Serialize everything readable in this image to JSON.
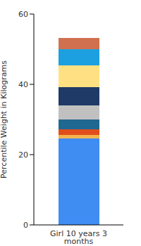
{
  "chart_data": {
    "type": "bar",
    "y_label": "Percentile Weight in Kilograms",
    "categories": [
      "Girl 10 years 3 months"
    ],
    "stacked": true,
    "ylim": [
      0,
      60
    ],
    "yticks": [
      0,
      20,
      40,
      60
    ],
    "grid": false,
    "series": [
      {
        "color": "#3f8cf2",
        "values": [
          24.6
        ]
      },
      {
        "color": "#f4b350",
        "values": [
          1.0
        ]
      },
      {
        "color": "#e04e1b",
        "values": [
          1.6
        ]
      },
      {
        "color": "#1f6891",
        "values": [
          2.8
        ]
      },
      {
        "color": "#c0c0c0",
        "values": [
          4.0
        ]
      },
      {
        "color": "#1f3a66",
        "values": [
          5.2
        ]
      },
      {
        "color": "#ffe082",
        "values": [
          6.2
        ]
      },
      {
        "color": "#1ca0e0",
        "values": [
          4.6
        ]
      },
      {
        "color": "#d0704f",
        "values": [
          3.2
        ]
      }
    ]
  }
}
